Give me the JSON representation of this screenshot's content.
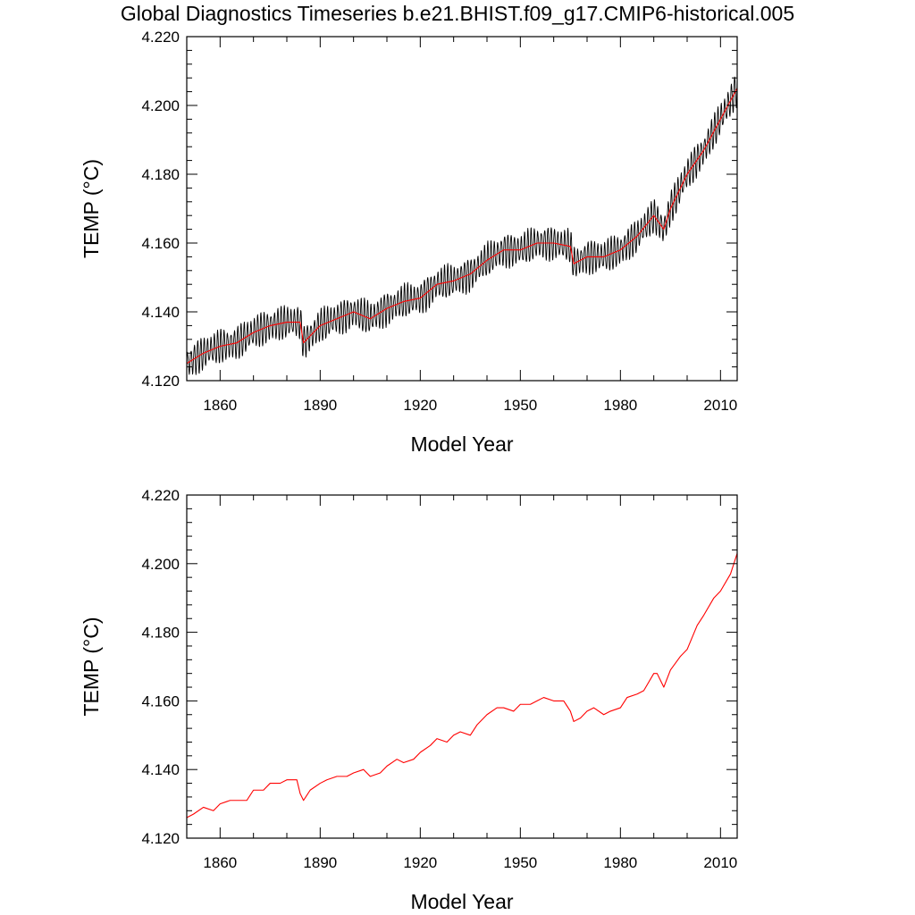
{
  "title": "Global Diagnostics Timeseries b.e21.BHIST.f09_g17.CMIP6-historical.005",
  "colors": {
    "monthly": "#000000",
    "annual": "#ff0000"
  },
  "chart_data": [
    {
      "type": "line",
      "panel": "top",
      "xlabel": "Model Year",
      "ylabel": "TEMP (°C)",
      "xlim": [
        1850,
        2015
      ],
      "ylim": [
        4.12,
        4.22
      ],
      "xticks": [
        "1860",
        "1890",
        "1920",
        "1950",
        "1980",
        "2010"
      ],
      "yticks": [
        "4.120",
        "4.140",
        "4.160",
        "4.180",
        "4.200",
        "4.220"
      ],
      "series": [
        {
          "style": "monthly",
          "color": "#000000",
          "seasonal_amplitude": 0.004,
          "x": [
            1850,
            1855,
            1860,
            1865,
            1870,
            1875,
            1880,
            1884,
            1885,
            1890,
            1895,
            1900,
            1905,
            1910,
            1915,
            1920,
            1925,
            1930,
            1935,
            1940,
            1945,
            1950,
            1955,
            1960,
            1965,
            1966,
            1970,
            1975,
            1980,
            1985,
            1990,
            1993,
            1995,
            2000,
            2005,
            2010,
            2015
          ],
          "y": [
            4.125,
            4.128,
            4.13,
            4.131,
            4.134,
            4.136,
            4.137,
            4.137,
            4.131,
            4.136,
            4.138,
            4.14,
            4.138,
            4.141,
            4.143,
            4.144,
            4.148,
            4.149,
            4.151,
            4.155,
            4.158,
            4.158,
            4.16,
            4.16,
            4.159,
            4.154,
            4.156,
            4.156,
            4.158,
            4.162,
            4.168,
            4.164,
            4.17,
            4.18,
            4.187,
            4.196,
            4.205
          ]
        },
        {
          "style": "annual",
          "color": "#ff0000",
          "x": [
            1850,
            1855,
            1860,
            1865,
            1870,
            1875,
            1880,
            1884,
            1885,
            1890,
            1895,
            1900,
            1905,
            1910,
            1915,
            1920,
            1925,
            1930,
            1935,
            1940,
            1945,
            1950,
            1955,
            1960,
            1965,
            1966,
            1970,
            1975,
            1980,
            1985,
            1990,
            1993,
            1995,
            2000,
            2005,
            2010,
            2015
          ],
          "y": [
            4.125,
            4.128,
            4.13,
            4.131,
            4.134,
            4.136,
            4.137,
            4.137,
            4.131,
            4.136,
            4.138,
            4.14,
            4.138,
            4.141,
            4.143,
            4.144,
            4.148,
            4.149,
            4.151,
            4.155,
            4.158,
            4.158,
            4.16,
            4.16,
            4.159,
            4.154,
            4.156,
            4.156,
            4.158,
            4.162,
            4.168,
            4.164,
            4.17,
            4.18,
            4.187,
            4.196,
            4.205
          ]
        }
      ]
    },
    {
      "type": "line",
      "panel": "bottom",
      "xlabel": "Model Year",
      "ylabel": "TEMP (°C)",
      "xlim": [
        1850,
        2015
      ],
      "ylim": [
        4.12,
        4.22
      ],
      "xticks": [
        "1860",
        "1890",
        "1920",
        "1950",
        "1980",
        "2010"
      ],
      "yticks": [
        "4.120",
        "4.140",
        "4.160",
        "4.180",
        "4.200",
        "4.220"
      ],
      "series": [
        {
          "style": "annual",
          "color": "#ff0000",
          "x": [
            1850,
            1852,
            1855,
            1858,
            1860,
            1863,
            1865,
            1868,
            1870,
            1873,
            1875,
            1878,
            1880,
            1883,
            1884,
            1885,
            1887,
            1890,
            1892,
            1895,
            1898,
            1900,
            1903,
            1905,
            1908,
            1910,
            1913,
            1915,
            1918,
            1920,
            1923,
            1925,
            1928,
            1930,
            1932,
            1935,
            1937,
            1940,
            1943,
            1945,
            1948,
            1950,
            1953,
            1955,
            1957,
            1960,
            1963,
            1965,
            1966,
            1968,
            1970,
            1972,
            1975,
            1977,
            1980,
            1982,
            1985,
            1987,
            1990,
            1991,
            1993,
            1995,
            1998,
            2000,
            2003,
            2005,
            2008,
            2010,
            2013,
            2015
          ],
          "y": [
            4.126,
            4.127,
            4.129,
            4.128,
            4.13,
            4.131,
            4.131,
            4.131,
            4.134,
            4.134,
            4.136,
            4.136,
            4.137,
            4.137,
            4.133,
            4.131,
            4.134,
            4.136,
            4.137,
            4.138,
            4.138,
            4.139,
            4.14,
            4.138,
            4.139,
            4.141,
            4.143,
            4.142,
            4.143,
            4.145,
            4.147,
            4.149,
            4.148,
            4.15,
            4.151,
            4.15,
            4.153,
            4.156,
            4.158,
            4.158,
            4.157,
            4.159,
            4.159,
            4.16,
            4.161,
            4.16,
            4.16,
            4.157,
            4.154,
            4.155,
            4.157,
            4.158,
            4.156,
            4.157,
            4.158,
            4.161,
            4.162,
            4.163,
            4.168,
            4.168,
            4.164,
            4.169,
            4.173,
            4.175,
            4.182,
            4.185,
            4.19,
            4.192,
            4.197,
            4.203
          ]
        }
      ]
    }
  ]
}
